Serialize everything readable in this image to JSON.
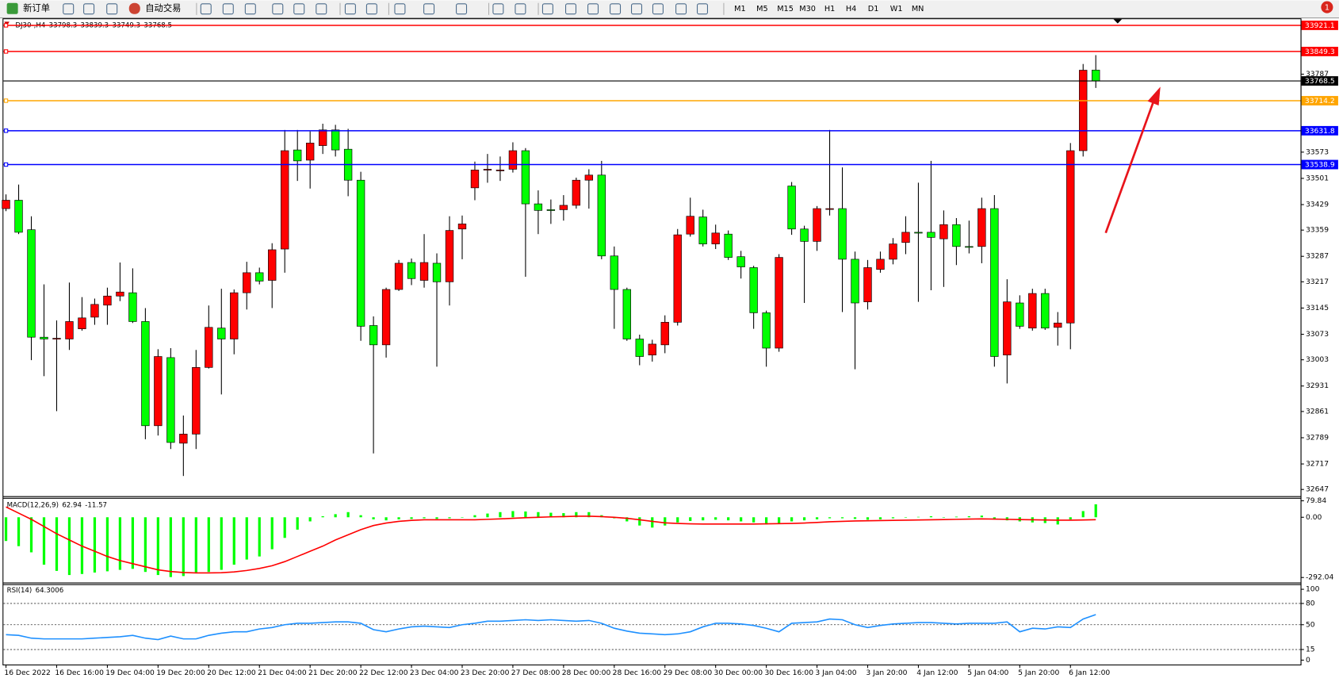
{
  "toolbar": {
    "new_order": "新订单",
    "auto_trading": "自动交易",
    "timeframes": [
      "M1",
      "M5",
      "M15",
      "M30",
      "H1",
      "H4",
      "D1",
      "W1",
      "MN"
    ],
    "badge": 1
  },
  "chart_data": [
    {
      "type": "candlestick",
      "symbol": "DJ30-,H4",
      "categories": [
        "16 Dec 2022",
        null,
        null,
        null,
        "16 Dec 16:00",
        null,
        null,
        null,
        "19 Dec 04:00",
        null,
        null,
        null,
        "19 Dec 20:00",
        null,
        null,
        null,
        "20 Dec 12:00",
        null,
        null,
        null,
        "21 Dec 04:00",
        null,
        null,
        null,
        "21 Dec 20:00",
        null,
        null,
        null,
        "22 Dec 12:00",
        null,
        null,
        null,
        "23 Dec 04:00",
        null,
        null,
        null,
        "23 Dec 20:00",
        null,
        null,
        null,
        "27 Dec 08:00",
        null,
        null,
        null,
        "28 Dec 00:00",
        null,
        null,
        null,
        "28 Dec 16:00",
        null,
        null,
        null,
        "29 Dec 08:00",
        null,
        null,
        null,
        "30 Dec 00:00",
        null,
        null,
        null,
        "30 Dec 16:00",
        null,
        null,
        null,
        "3 Jan 04:00",
        null,
        null,
        null,
        "3 Jan 20:00",
        null,
        null,
        null,
        "4 Jan 12:00",
        null,
        null,
        null,
        "5 Jan 04:00",
        null,
        null,
        null,
        "5 Jan 20:00",
        null,
        null,
        null,
        "6 Jan 12:00",
        null,
        null
      ],
      "open": [
        33418,
        33441,
        33360,
        33065,
        33060,
        33060,
        33088,
        33120,
        33153,
        33178,
        33187,
        33108,
        32822,
        33009,
        32774,
        32799,
        32982,
        33090,
        33060,
        33187,
        33242,
        33221,
        33307,
        33579,
        33551,
        33591,
        33634,
        33581,
        33496,
        33097,
        33044,
        33196,
        33270,
        33221,
        33268,
        33217,
        33362,
        33475,
        33524,
        33524,
        33526,
        33577,
        33431,
        33415,
        33415,
        33427,
        33496,
        33510,
        33288,
        33196,
        33060,
        33016,
        33044,
        33106,
        33348,
        33395,
        33321,
        33348,
        33286,
        33256,
        33132,
        33035,
        33480,
        33362,
        33328,
        33418,
        33418,
        33279,
        33162,
        33251,
        33279,
        33325,
        33353,
        33353,
        33335,
        33374,
        33314,
        33314,
        33418,
        33016,
        33159,
        33090,
        33185,
        33092,
        33104,
        33577,
        33798.3
      ],
      "high": [
        33457,
        33484,
        33397,
        33210,
        33111,
        33215,
        33175,
        33171,
        33201,
        33270,
        33254,
        33145,
        33032,
        33035,
        32850,
        33030,
        33152,
        33198,
        33196,
        33272,
        33256,
        33323,
        33634,
        33634,
        33630,
        33651,
        33648,
        33637,
        33519,
        33122,
        33201,
        33277,
        33281,
        33348,
        33295,
        33397,
        33399,
        33547,
        33568,
        33561,
        33600,
        33584,
        33468,
        33443,
        33455,
        33503,
        33526,
        33549,
        33314,
        33201,
        33072,
        33058,
        33125,
        33362,
        33448,
        33415,
        33374,
        33358,
        33302,
        33261,
        33138,
        33293,
        33491,
        33371,
        33425,
        33634,
        33531,
        33300,
        33277,
        33300,
        33337,
        33397,
        33489,
        33549,
        33413,
        33392,
        33385,
        33448,
        33455,
        33224,
        33180,
        33198,
        33198,
        33134,
        33598,
        33815,
        33839.3
      ],
      "low": [
        33411,
        33348,
        33002,
        32958,
        32862,
        33030,
        33083,
        33099,
        33099,
        33164,
        33104,
        32785,
        32795,
        32758,
        32684,
        32758,
        32979,
        32908,
        33018,
        33141,
        33210,
        33145,
        33242,
        33494,
        33473,
        33568,
        33561,
        33452,
        33055,
        32746,
        33009,
        33192,
        33208,
        33201,
        32984,
        33152,
        33279,
        33441,
        33489,
        33494,
        33517,
        33231,
        33348,
        33376,
        33385,
        33418,
        33418,
        33279,
        33088,
        33055,
        32988,
        32998,
        33021,
        33097,
        33341,
        33314,
        33307,
        33277,
        33226,
        33088,
        32984,
        33025,
        33346,
        33159,
        33302,
        33399,
        33134,
        32977,
        33141,
        33242,
        33265,
        33293,
        33162,
        33194,
        33203,
        33263,
        33295,
        33268,
        32984,
        32938,
        33088,
        33083,
        33085,
        33042,
        33032,
        33561,
        33749.3
      ],
      "close": [
        33441,
        33353,
        33065,
        33060,
        33062,
        33108,
        33118,
        33155,
        33178,
        33189,
        33108,
        32822,
        33012,
        32776,
        32799,
        32982,
        33092,
        33060,
        33187,
        33242,
        33219,
        33305,
        33577,
        33549,
        33598,
        33634,
        33579,
        33496,
        33095,
        33044,
        33196,
        33268,
        33226,
        33270,
        33217,
        33358,
        33376,
        33524,
        33526,
        33524,
        33577,
        33431,
        33413,
        33413,
        33427,
        33496,
        33510,
        33288,
        33196,
        33060,
        33012,
        33046,
        33106,
        33346,
        33397,
        33321,
        33351,
        33284,
        33258,
        33132,
        33035,
        33284,
        33362,
        33328,
        33418,
        33418,
        33279,
        33159,
        33256,
        33279,
        33321,
        33353,
        33351,
        33339,
        33374,
        33314,
        33312,
        33418,
        33012,
        33162,
        33095,
        33185,
        33090,
        33104,
        33577,
        33798,
        33768.5
      ],
      "up_color": "#ff0000",
      "down_color": "#00ff00",
      "bid_line_color": "#000000",
      "ylim": [
        32631,
        33938
      ],
      "yticks": [
        32647,
        32717,
        32789,
        32861,
        32931,
        33003,
        33073,
        33145,
        33217,
        33287,
        33359,
        33429,
        33501,
        33573,
        33787
      ],
      "price_lines": [
        {
          "value": 33921.1,
          "color": "#ff0000"
        },
        {
          "value": 33849.3,
          "color": "#ff0000"
        },
        {
          "value": 33714.2,
          "color": "#ffa500"
        },
        {
          "value": 33631.8,
          "color": "#0000ff"
        },
        {
          "value": 33538.9,
          "color": "#0000ff"
        }
      ]
    },
    {
      "type": "macd",
      "name": "MACD(12,26,9)",
      "values": [
        -115,
        -140,
        -170,
        -230,
        -260,
        -280,
        -275,
        -268,
        -262,
        -255,
        -250,
        -265,
        -280,
        -290,
        -285,
        -270,
        -265,
        -255,
        -230,
        -205,
        -190,
        -155,
        -100,
        -60,
        -20,
        5,
        15,
        25,
        10,
        -10,
        -15,
        -10,
        -8,
        -5,
        -8,
        -5,
        0,
        10,
        18,
        25,
        30,
        28,
        25,
        22,
        20,
        25,
        25,
        10,
        -5,
        -20,
        -40,
        -50,
        -40,
        -25,
        -18,
        -15,
        -12,
        -15,
        -20,
        -25,
        -35,
        -30,
        -20,
        -15,
        -10,
        -5,
        -5,
        -8,
        -12,
        -10,
        -5,
        0,
        2,
        5,
        0,
        3,
        5,
        8,
        -8,
        -15,
        -20,
        -25,
        -28,
        -35,
        -10,
        30,
        62.94
      ],
      "signal": [
        50,
        20,
        -10,
        -45,
        -80,
        -110,
        -140,
        -165,
        -190,
        -210,
        -225,
        -240,
        -255,
        -263,
        -268,
        -270,
        -270,
        -269,
        -265,
        -258,
        -248,
        -235,
        -215,
        -190,
        -165,
        -140,
        -110,
        -85,
        -60,
        -40,
        -28,
        -20,
        -15,
        -12,
        -12,
        -12,
        -12,
        -12,
        -10,
        -8,
        -5,
        -2,
        0,
        2,
        3,
        5,
        5,
        3,
        0,
        -5,
        -12,
        -20,
        -27,
        -30,
        -32,
        -33,
        -33,
        -33,
        -33,
        -33,
        -32,
        -31,
        -30,
        -28,
        -25,
        -22,
        -20,
        -18,
        -17,
        -16,
        -15,
        -14,
        -13,
        -12,
        -11,
        -10,
        -9,
        -8,
        -9,
        -10,
        -11,
        -12,
        -13,
        -14,
        -14,
        -13,
        -11.57
      ],
      "color": "#00ff00",
      "signal_color": "#ff0000",
      "ylim": [
        -312,
        90
      ],
      "yticks": [
        79.84,
        {
          "value": 0,
          "label": "0.00"
        },
        -292.04
      ]
    },
    {
      "type": "rsi",
      "name": "RSI(14)",
      "values": [
        36,
        35,
        31,
        30,
        30,
        30,
        30,
        31,
        32,
        33,
        35,
        31,
        29,
        34,
        30,
        30,
        35,
        38,
        40,
        40,
        44,
        46,
        50,
        52,
        52,
        53,
        54,
        54,
        52,
        43,
        40,
        44,
        47,
        48,
        47,
        46,
        50,
        52,
        55,
        55,
        56,
        57,
        56,
        57,
        56,
        55,
        56,
        52,
        45,
        41,
        38,
        37,
        36,
        37,
        40,
        47,
        52,
        52,
        51,
        49,
        45,
        40,
        52,
        53,
        54,
        58,
        57,
        50,
        46,
        49,
        51,
        52,
        53,
        53,
        52,
        51,
        52,
        52,
        52,
        54,
        40,
        45,
        44,
        47,
        46,
        58,
        64.3006
      ],
      "color": "#1e90ff",
      "ylim": [
        -5,
        106
      ],
      "yticks": [
        0,
        15,
        50,
        80,
        100
      ],
      "levels": [
        15,
        50,
        80
      ]
    }
  ]
}
